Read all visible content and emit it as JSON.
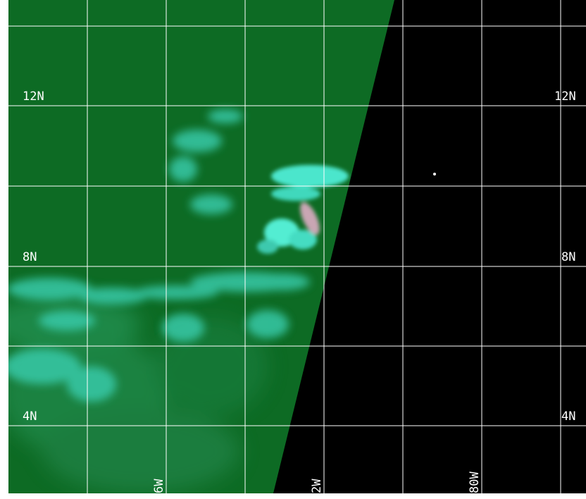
{
  "map": {
    "latitude_labels_left": [
      "12N",
      "8N",
      "4N"
    ],
    "latitude_labels_right": [
      "12N",
      "8N",
      "4N"
    ],
    "longitude_labels": [
      "6W",
      "2W",
      "80W"
    ],
    "colors": {
      "land_or_ocean_green": "#0d6b24",
      "cloud_cyan": "#3fe0c8",
      "no_data_black": "#000000",
      "grid_lines": "#ffffff",
      "marker": "#ffffff"
    }
  }
}
